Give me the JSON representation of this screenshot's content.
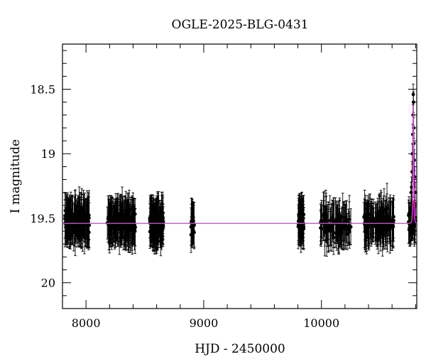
{
  "chart_data": {
    "type": "scatter",
    "title": "OGLE-2025-BLG-0431",
    "xlabel": "HJD - 2450000",
    "ylabel": "I magnitude",
    "xlim": [
      7800,
      10810
    ],
    "ylim": [
      20.2,
      18.15
    ],
    "y_inverted": true,
    "x_ticks": [
      8000,
      9000,
      10000
    ],
    "x_tick_labels": [
      "8000",
      "9000",
      "10000"
    ],
    "y_ticks": [
      18.5,
      19,
      19.5,
      20
    ],
    "y_tick_labels": [
      "18.5",
      "19",
      "19.5",
      "20"
    ],
    "grid": false,
    "baseline_mag": 19.54,
    "series": [
      {
        "kind": "observations",
        "color": "#000000",
        "seasons": [
          {
            "t_start": 7820,
            "t_end": 8030,
            "n": 150,
            "mean_mag": 19.52,
            "scatter": 0.09,
            "error": 0.15
          },
          {
            "t_start": 8180,
            "t_end": 8420,
            "n": 150,
            "mean_mag": 19.53,
            "scatter": 0.09,
            "error": 0.15
          },
          {
            "t_start": 8540,
            "t_end": 8660,
            "n": 110,
            "mean_mag": 19.53,
            "scatter": 0.09,
            "error": 0.15
          },
          {
            "t_start": 8890,
            "t_end": 8920,
            "n": 20,
            "mean_mag": 19.55,
            "scatter": 0.08,
            "error": 0.14
          },
          {
            "t_start": 9800,
            "t_end": 9850,
            "n": 40,
            "mean_mag": 19.52,
            "scatter": 0.09,
            "error": 0.15
          },
          {
            "t_start": 9990,
            "t_end": 10250,
            "n": 90,
            "mean_mag": 19.56,
            "scatter": 0.09,
            "error": 0.15
          },
          {
            "t_start": 10360,
            "t_end": 10620,
            "n": 120,
            "mean_mag": 19.53,
            "scatter": 0.09,
            "error": 0.15
          },
          {
            "t_start": 10740,
            "t_end": 10800,
            "n": 40,
            "mean_mag": 19.53,
            "scatter": 0.07,
            "error": 0.13
          }
        ],
        "event_points": [
          {
            "t": 10762,
            "mag": 19.3
          },
          {
            "t": 10766,
            "mag": 19.26
          },
          {
            "t": 10770,
            "mag": 19.14
          },
          {
            "t": 10773,
            "mag": 19.0
          },
          {
            "t": 10776,
            "mag": 18.85
          },
          {
            "t": 10778,
            "mag": 18.7
          },
          {
            "t": 10780,
            "mag": 18.54
          },
          {
            "t": 10782,
            "mag": 18.6
          },
          {
            "t": 10784,
            "mag": 18.8
          },
          {
            "t": 10786,
            "mag": 18.92
          },
          {
            "t": 10789,
            "mag": 19.05
          },
          {
            "t": 10792,
            "mag": 19.18
          },
          {
            "t": 10796,
            "mag": 19.3
          }
        ]
      },
      {
        "kind": "model",
        "color": "#e040e0",
        "t0": 10781,
        "tE": 5,
        "peak_mag": 18.62
      }
    ]
  }
}
